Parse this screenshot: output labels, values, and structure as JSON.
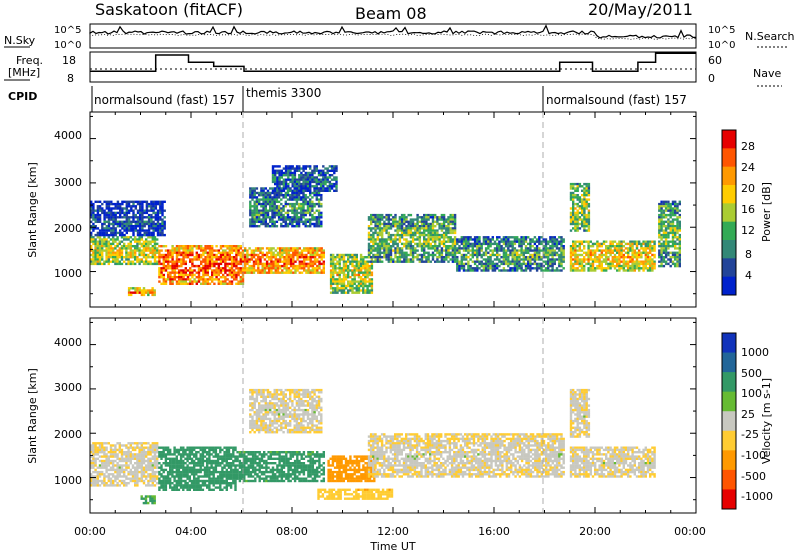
{
  "header": {
    "title_left": "Saskatoon (fitACF)",
    "title_center": "Beam 08",
    "title_right": "20/May/2011"
  },
  "side_labels": {
    "nsky": "N.Sky",
    "nsearch": "N.Search",
    "freq_line1": "Freq.",
    "freq_line2": "[MHz]",
    "nave": "Nave",
    "cpid": "CPID"
  },
  "noise_panel": {
    "left_ticks": [
      "10^5",
      "10^0"
    ],
    "right_ticks": [
      "10^5",
      "10^0"
    ]
  },
  "freq_panel": {
    "left_ticks": [
      "18",
      "8"
    ],
    "right_ticks": [
      "60",
      "0"
    ],
    "freq_steps": [
      {
        "t0": 0.0,
        "t1": 2.6,
        "mhz": 11.6
      },
      {
        "t0": 2.6,
        "t1": 3.9,
        "mhz": 17.0
      },
      {
        "t0": 3.9,
        "t1": 4.9,
        "mhz": 14.6
      },
      {
        "t0": 4.9,
        "t1": 6.1,
        "mhz": 13.2
      },
      {
        "t0": 6.1,
        "t1": 18.6,
        "mhz": 11.6
      },
      {
        "t0": 18.6,
        "t1": 19.9,
        "mhz": 14.6
      },
      {
        "t0": 19.9,
        "t1": 21.7,
        "mhz": 11.6
      },
      {
        "t0": 21.7,
        "t1": 22.4,
        "mhz": 14.6
      },
      {
        "t0": 22.4,
        "t1": 24.0,
        "mhz": 17.6
      }
    ],
    "nave_level": 26
  },
  "cpid_modes": [
    {
      "label": "normalsound (fast) 157",
      "start_hour": 0
    },
    {
      "label": "themis 3300",
      "start_hour": 6
    },
    {
      "label": "normalsound (fast) 157",
      "start_hour": 18
    }
  ],
  "power_panel": {
    "ylabel": "Slant Range [km]",
    "y_ticks": [
      "4000",
      "3000",
      "2000",
      "1000"
    ],
    "colorbar_label": "Power [dB]",
    "colorbar_ticks": [
      "28",
      "24",
      "20",
      "16",
      "12",
      "8",
      "4"
    ],
    "colorbar_colors": [
      "#e60000",
      "#ff5500",
      "#ff9900",
      "#ffcc00",
      "#aacc33",
      "#33aa55",
      "#338877",
      "#224499",
      "#0022cc"
    ]
  },
  "velocity_panel": {
    "ylabel": "Slant Range [km]",
    "y_ticks": [
      "4000",
      "3000",
      "2000",
      "1000"
    ],
    "colorbar_label": "Velocity [m s-1]",
    "colorbar_ticks": [
      "1000",
      "500",
      "100",
      "25",
      "-25",
      "-100",
      "-500",
      "-1000"
    ],
    "colorbar_colors": [
      "#1133bb",
      "#226699",
      "#339966",
      "#66bb33",
      "#c8c8c0",
      "#ffcc33",
      "#ff9900",
      "#ff5500",
      "#e60000"
    ]
  },
  "x_axis": {
    "label": "Time UT",
    "ticks": [
      "00:00",
      "04:00",
      "08:00",
      "12:00",
      "16:00",
      "20:00",
      "00:00"
    ]
  },
  "chart_data": {
    "type": "heatmap",
    "x_range_hours": [
      0,
      24
    ],
    "y_range_km": [
      200,
      4600
    ],
    "power_bands": [
      {
        "t0": 0.0,
        "t1": 2.7,
        "r0": 1150,
        "r1": 1800,
        "db": 18
      },
      {
        "t0": 2.7,
        "t1": 6.1,
        "r0": 700,
        "r1": 1600,
        "db": 26
      },
      {
        "t0": 6.1,
        "t1": 9.3,
        "r0": 950,
        "r1": 1550,
        "db": 24
      },
      {
        "t0": 9.5,
        "t1": 11.2,
        "r0": 500,
        "r1": 1400,
        "db": 18
      },
      {
        "t0": 11.0,
        "t1": 14.5,
        "r0": 1200,
        "r1": 2300,
        "db": 14
      },
      {
        "t0": 14.5,
        "t1": 18.8,
        "r0": 1000,
        "r1": 1800,
        "db": 12
      },
      {
        "t0": 19.0,
        "t1": 22.4,
        "r0": 1000,
        "r1": 1700,
        "db": 20
      },
      {
        "t0": 6.3,
        "t1": 9.2,
        "r0": 2000,
        "r1": 2900,
        "db": 10
      },
      {
        "t0": 7.2,
        "t1": 9.8,
        "r0": 2800,
        "r1": 3400,
        "db": 8
      },
      {
        "t0": 0.0,
        "t1": 3.0,
        "r0": 1800,
        "r1": 2600,
        "db": 6
      },
      {
        "t0": 19.0,
        "t1": 19.8,
        "r0": 1900,
        "r1": 3000,
        "db": 16
      },
      {
        "t0": 22.5,
        "t1": 23.4,
        "r0": 1100,
        "r1": 2600,
        "db": 14
      },
      {
        "t0": 1.5,
        "t1": 2.6,
        "r0": 450,
        "r1": 650,
        "db": 22
      }
    ],
    "velocity_bands": [
      {
        "t0": 0.0,
        "t1": 2.7,
        "r0": 800,
        "r1": 1800,
        "v": 0
      },
      {
        "t0": 2.7,
        "t1": 5.8,
        "r0": 700,
        "r1": 1700,
        "v": 200
      },
      {
        "t0": 5.8,
        "t1": 9.3,
        "r0": 900,
        "r1": 1600,
        "v": 150
      },
      {
        "t0": 9.4,
        "t1": 11.3,
        "r0": 900,
        "r1": 1500,
        "v": -200
      },
      {
        "t0": 11.0,
        "t1": 18.8,
        "r0": 1000,
        "r1": 2000,
        "v": 0
      },
      {
        "t0": 19.0,
        "t1": 22.4,
        "r0": 1000,
        "r1": 1700,
        "v": 0
      },
      {
        "t0": 6.3,
        "t1": 9.2,
        "r0": 2000,
        "r1": 3000,
        "v": 0
      },
      {
        "t0": 19.0,
        "t1": 19.8,
        "r0": 1900,
        "r1": 3000,
        "v": 0
      },
      {
        "t0": 2.0,
        "t1": 2.6,
        "r0": 400,
        "r1": 600,
        "v": 120
      },
      {
        "t0": 9.0,
        "t1": 12.0,
        "r0": 500,
        "r1": 750,
        "v": -50
      }
    ]
  }
}
